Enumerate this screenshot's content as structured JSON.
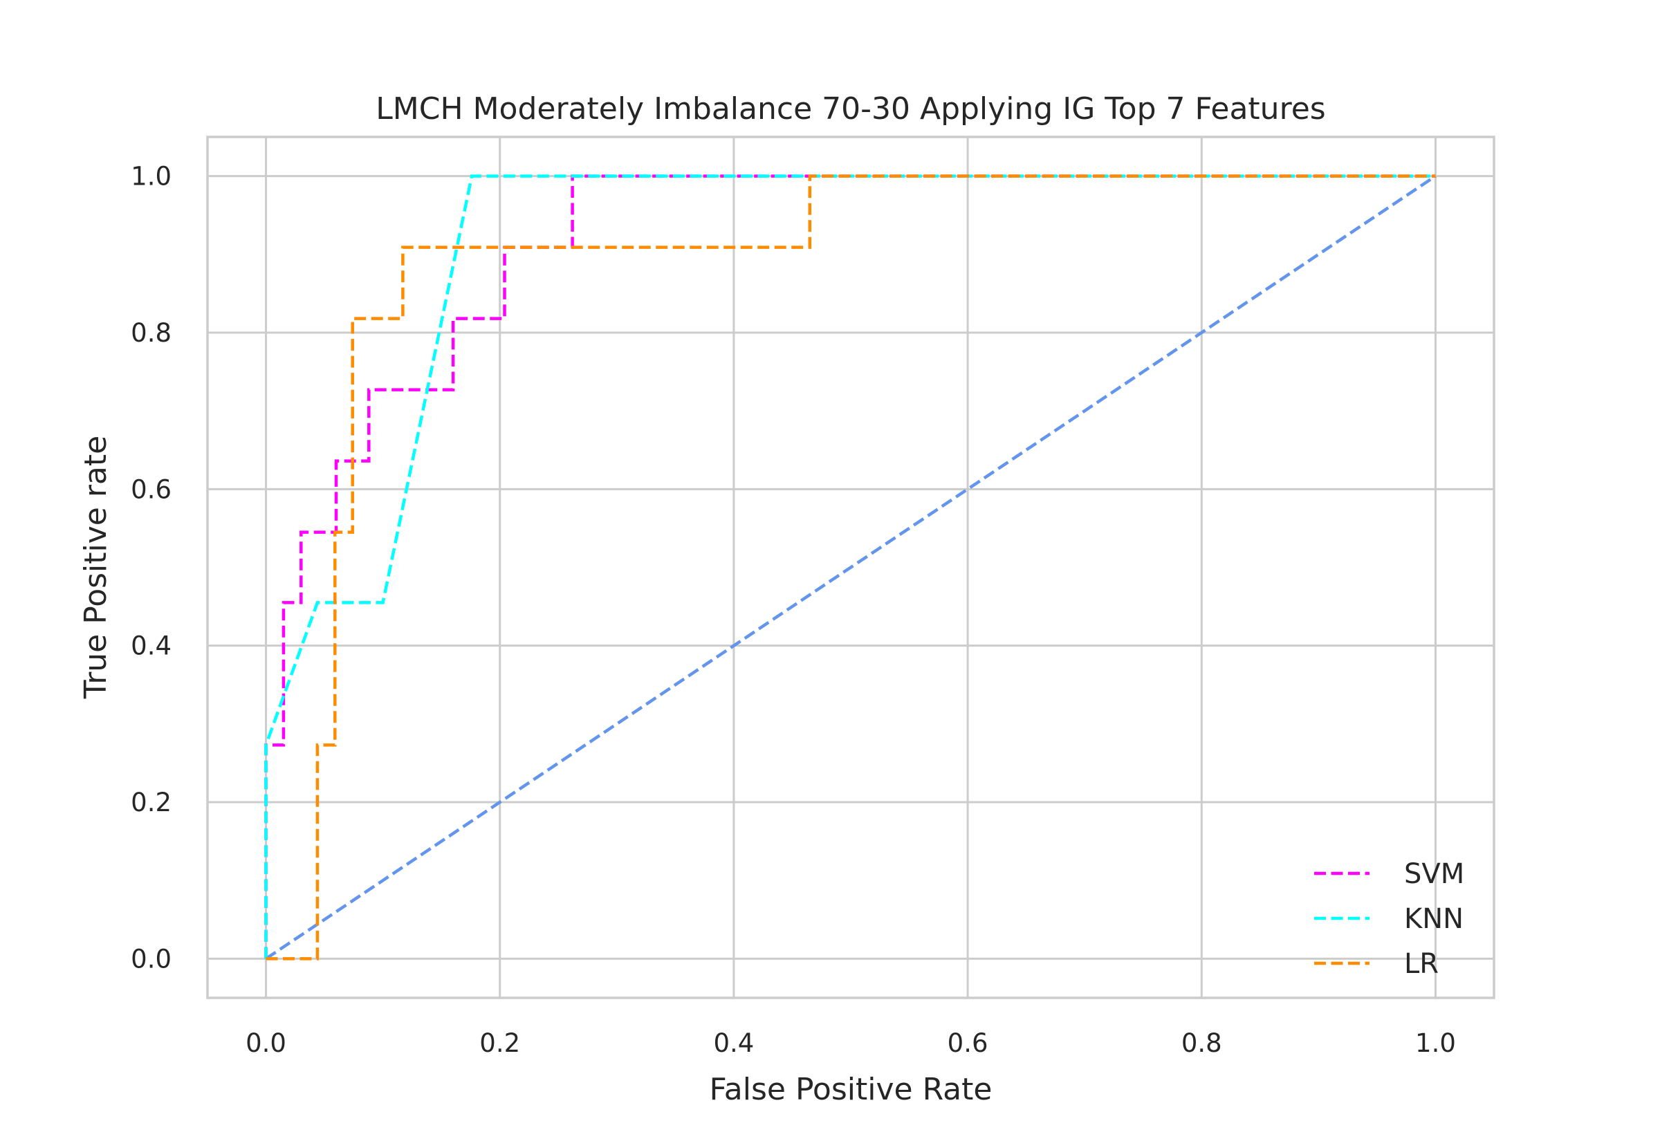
{
  "chart_data": {
    "type": "line",
    "title": "LMCH Moderately Imbalance 70-30 Applying IG Top 7 Features",
    "xlabel": "False Positive Rate",
    "ylabel": "True Positive rate",
    "xlim": [
      -0.05,
      1.05
    ],
    "ylim": [
      -0.05,
      1.05
    ],
    "xticks": [
      "0.0",
      "0.2",
      "0.4",
      "0.6",
      "0.8",
      "1.0"
    ],
    "yticks": [
      "0.0",
      "0.2",
      "0.4",
      "0.6",
      "0.8",
      "1.0"
    ],
    "grid": true,
    "legend_position": "lower-right",
    "series": [
      {
        "name": "SVM",
        "color": "#ff00ff",
        "x": [
          0.0,
          0.0,
          0.015,
          0.015,
          0.03,
          0.03,
          0.06,
          0.06,
          0.088,
          0.088,
          0.16,
          0.16,
          0.204,
          0.204,
          0.262,
          0.262,
          1.0
        ],
        "y": [
          0.0,
          0.273,
          0.273,
          0.455,
          0.455,
          0.545,
          0.545,
          0.636,
          0.636,
          0.727,
          0.727,
          0.818,
          0.818,
          0.909,
          0.909,
          1.0,
          1.0
        ]
      },
      {
        "name": "KNN",
        "color": "#00ffff",
        "x": [
          0.0,
          0.0,
          0.044,
          0.1,
          0.176,
          1.0
        ],
        "y": [
          0.0,
          0.273,
          0.455,
          0.455,
          1.0,
          1.0
        ]
      },
      {
        "name": "LR",
        "color": "#ff8c00",
        "x": [
          0.0,
          0.044,
          0.044,
          0.059,
          0.059,
          0.074,
          0.074,
          0.117,
          0.117,
          0.465,
          0.465,
          1.0
        ],
        "y": [
          0.0,
          0.0,
          0.273,
          0.273,
          0.545,
          0.545,
          0.818,
          0.818,
          0.909,
          0.909,
          1.0,
          1.0
        ]
      },
      {
        "color": "#6495ed",
        "x": [
          0.0,
          1.0
        ],
        "y": [
          0.0,
          1.0
        ]
      }
    ]
  }
}
